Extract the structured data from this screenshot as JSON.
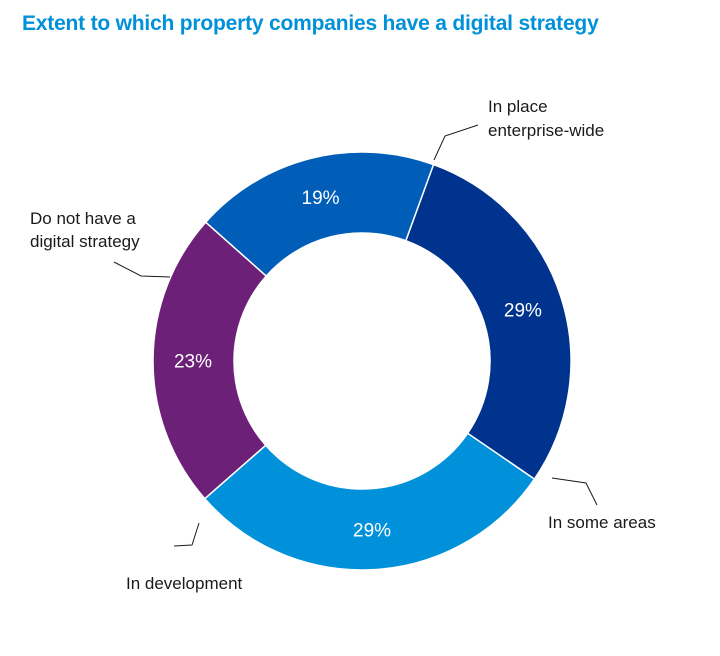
{
  "chart_data": {
    "type": "pie",
    "title": "Extent to which property companies have a digital strategy",
    "slices": [
      {
        "label_lines": [
          "In place",
          "enterprise-wide"
        ],
        "value": 29,
        "value_label": "29%",
        "color": "#00338d"
      },
      {
        "label_lines": [
          "In some areas"
        ],
        "value": 29,
        "value_label": "29%",
        "color": "#0091da"
      },
      {
        "label_lines": [
          "In development"
        ],
        "value": 23,
        "value_label": "23%",
        "color": "#6d2077"
      },
      {
        "label_lines": [
          "Do not have a",
          "digital strategy"
        ],
        "value": 19,
        "value_label": "19%",
        "color": "#005eb8"
      }
    ]
  }
}
